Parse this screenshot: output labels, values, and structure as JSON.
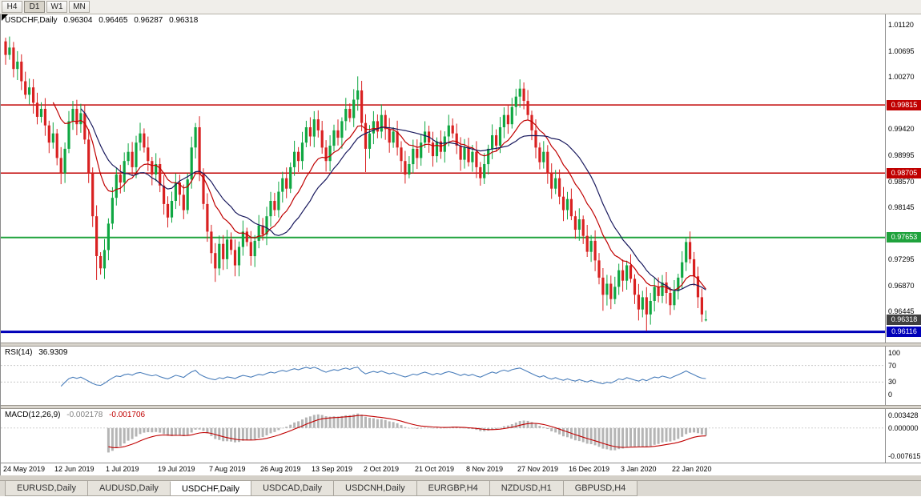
{
  "toolbar": {
    "timeframe_buttons": [
      "H4",
      "D1",
      "W1",
      "MN"
    ],
    "active_timeframe": "D1"
  },
  "chart_header": {
    "symbol": "USDCHF,Daily",
    "open": "0.96304",
    "high": "0.96465",
    "low": "0.96287",
    "close": "0.96318"
  },
  "price_axis": {
    "labels": [
      "1.01120",
      "1.00695",
      "1.00270",
      "0.99845",
      "0.99420",
      "0.98995",
      "0.98570",
      "0.98145",
      "0.97720",
      "0.97295",
      "0.96870",
      "0.96445",
      "0.96020"
    ],
    "badges": [
      {
        "text": "0.99815",
        "value": 0.99815,
        "type": "resistance-level",
        "color": "#c00000"
      },
      {
        "text": "0.98705",
        "value": 0.98705,
        "type": "resistance-level",
        "color": "#c00000"
      },
      {
        "text": "0.97653",
        "value": 0.97653,
        "type": "support-level",
        "color": "#1fa23c"
      },
      {
        "text": "0.96318",
        "value": 0.96318,
        "type": "current-price",
        "color": "#3f3f3f"
      },
      {
        "text": "0.96116",
        "value": 0.96116,
        "type": "support-level",
        "color": "#0000b8"
      }
    ]
  },
  "time_axis": {
    "labels": [
      "24 May 2019",
      "12 Jun 2019",
      "1 Jul 2019",
      "19 Jul 2019",
      "7 Aug 2019",
      "26 Aug 2019",
      "13 Sep 2019",
      "2 Oct 2019",
      "21 Oct 2019",
      "8 Nov 2019",
      "27 Nov 2019",
      "16 Dec 2019",
      "3 Jan 2020",
      "22 Jan 2020"
    ]
  },
  "rsi_panel": {
    "label": "RSI(14)",
    "value": "36.9309",
    "axis_labels": [
      "100",
      "70",
      "30",
      "0"
    ],
    "axis_values": [
      100,
      70,
      30,
      0
    ],
    "dashed_levels": [
      70,
      30
    ],
    "line_color": "#4a7ebb"
  },
  "macd_panel": {
    "label": "MACD(12,26,9)",
    "main_value": "-0.002178",
    "signal_value": "-0.001706",
    "axis_labels": [
      "0.003428",
      "0.000000",
      "-0.007615"
    ],
    "axis_values": [
      0.003428,
      0.0,
      -0.007615
    ],
    "histogram_color": "#b5b5b5",
    "signal_color": "#c00000"
  },
  "tabs": [
    "EURUSD,Daily",
    "AUDUSD,Daily",
    "USDCHF,Daily",
    "USDCAD,Daily",
    "USDCNH,Daily",
    "EURGBP,H4",
    "NZDUSD,H1",
    "GBPUSD,H4"
  ],
  "active_tab": "USDCHF,Daily",
  "chart_data": {
    "type": "candlestick",
    "symbol": "USDCHF",
    "timeframe": "Daily",
    "title": "USDCHF,Daily 0.96304 0.96465 0.96287 0.96318",
    "y_range": [
      0.9602,
      1.0112
    ],
    "bull_color": "#0fa742",
    "bear_color": "#d92121",
    "first_open": 1.0085,
    "closes": [
      1.0063,
      1.0075,
      1.004,
      1.0052,
      1.002,
      0.9998,
      1.001,
      0.9985,
      0.9962,
      0.9975,
      0.9948,
      0.992,
      0.9935,
      0.9895,
      0.987,
      0.991,
      0.9955,
      0.9975,
      0.995,
      0.9968,
      0.9925,
      0.987,
      0.98,
      0.9735,
      0.9715,
      0.9745,
      0.9788,
      0.983,
      0.9868,
      0.9855,
      0.989,
      0.9905,
      0.988,
      0.992,
      0.9935,
      0.9912,
      0.989,
      0.9868,
      0.9885,
      0.985,
      0.982,
      0.9798,
      0.9825,
      0.9855,
      0.9835,
      0.981,
      0.986,
      0.9912,
      0.9945,
      0.987,
      0.982,
      0.9775,
      0.974,
      0.9715,
      0.9755,
      0.973,
      0.9762,
      0.9745,
      0.972,
      0.975,
      0.9775,
      0.9758,
      0.9735,
      0.976,
      0.9785,
      0.977,
      0.98,
      0.9825,
      0.981,
      0.984,
      0.9862,
      0.9845,
      0.988,
      0.9905,
      0.989,
      0.992,
      0.9945,
      0.993,
      0.9958,
      0.994,
      0.9912,
      0.989,
      0.9915,
      0.994,
      0.9928,
      0.9955,
      0.9975,
      0.996,
      0.999,
      1.0005,
      0.9952,
      0.991,
      0.9935,
      0.9955,
      0.9938,
      0.9965,
      0.9942,
      0.992,
      0.9938,
      0.9912,
      0.989,
      0.9868,
      0.9885,
      0.991,
      0.9895,
      0.992,
      0.9938,
      0.992,
      0.9898,
      0.9922,
      0.9905,
      0.993,
      0.9948,
      0.9935,
      0.9915,
      0.9892,
      0.9912,
      0.9888,
      0.9905,
      0.988,
      0.9862,
      0.9885,
      0.991,
      0.9932,
      0.9915,
      0.9945,
      0.9965,
      0.995,
      0.9978,
      0.9995,
      1.0008,
      0.9988,
      0.9965,
      0.994,
      0.9912,
      0.9888,
      0.9905,
      0.987,
      0.9845,
      0.9862,
      0.9832,
      0.981,
      0.9828,
      0.98,
      0.9778,
      0.9795,
      0.9768,
      0.9742,
      0.976,
      0.9728,
      0.97,
      0.9672,
      0.969,
      0.9665,
      0.9685,
      0.9712,
      0.9695,
      0.972,
      0.9698,
      0.9672,
      0.9648,
      0.9668,
      0.964,
      0.9662,
      0.9685,
      0.967,
      0.9692,
      0.9675,
      0.9655,
      0.9678,
      0.97,
      0.9725,
      0.9758,
      0.973,
      0.9702,
      0.9668,
      0.964,
      0.96318
    ],
    "wick_overrides": {
      "23": {
        "low": 0.9696
      },
      "53": {
        "low": 0.9693
      },
      "58": {
        "low": 0.9702
      },
      "89": {
        "high": 1.0028
      },
      "91": {
        "low": 0.9872
      },
      "130": {
        "high": 1.0023
      },
      "151": {
        "low": 0.9646
      },
      "162": {
        "low": 0.9613
      },
      "172": {
        "high": 0.9766
      }
    },
    "last_candle": {
      "open": 0.96304,
      "high": 0.96465,
      "low": 0.96287,
      "close": 0.96318
    },
    "levels": [
      {
        "value": 0.99815,
        "color": "#c00000",
        "width": 1.5
      },
      {
        "value": 0.98705,
        "color": "#c00000",
        "width": 1.5
      },
      {
        "value": 0.97653,
        "color": "#1fa23c",
        "width": 2
      },
      {
        "value": 0.96116,
        "color": "#0000b8",
        "width": 3
      }
    ],
    "moving_averages": [
      {
        "type": "ema",
        "period": 13,
        "color": "#c00000"
      },
      {
        "type": "sma",
        "period": 20,
        "color": "#1a1a5e"
      }
    ],
    "indicators": {
      "rsi_period": 14,
      "macd_params": [
        12,
        26,
        9
      ]
    }
  }
}
